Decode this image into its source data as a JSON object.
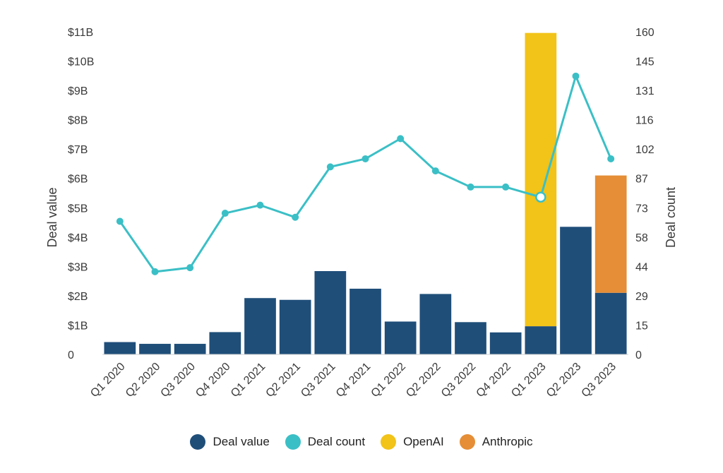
{
  "chart_data": {
    "type": "bar",
    "categories": [
      "Q1 2020",
      "Q2 2020",
      "Q3 2020",
      "Q4 2020",
      "Q1 2021",
      "Q2 2021",
      "Q3 2021",
      "Q4 2021",
      "Q1 2022",
      "Q2 2022",
      "Q3 2022",
      "Q4 2022",
      "Q1 2023",
      "Q2 2023",
      "Q3 2023"
    ],
    "series": [
      {
        "name": "Deal value",
        "kind": "bar-stack",
        "axis": "left",
        "color": "#1f4e79",
        "values": [
          0.42,
          0.36,
          0.36,
          0.76,
          1.92,
          1.86,
          2.84,
          2.24,
          1.12,
          2.06,
          1.1,
          0.75,
          0.96,
          4.35,
          2.1
        ]
      },
      {
        "name": "OpenAI",
        "kind": "bar-stack",
        "axis": "left",
        "color": "#f2c318",
        "values": [
          0,
          0,
          0,
          0,
          0,
          0,
          0,
          0,
          0,
          0,
          0,
          0,
          10,
          0,
          0
        ]
      },
      {
        "name": "Anthropic",
        "kind": "bar-stack",
        "axis": "left",
        "color": "#e58e37",
        "values": [
          0,
          0,
          0,
          0,
          0,
          0,
          0,
          0,
          0,
          0,
          0,
          0,
          0,
          0,
          4
        ]
      },
      {
        "name": "Deal count",
        "kind": "line",
        "axis": "right",
        "color": "#3bbfc6",
        "values": [
          66,
          41,
          43,
          70,
          74,
          68,
          93,
          97,
          107,
          91,
          83,
          83,
          78,
          138,
          97
        ]
      }
    ],
    "ylabel": "Deal value",
    "y2label": "Deal count",
    "ylim": [
      0,
      11
    ],
    "y2lim": [
      0,
      160
    ],
    "yticks": [
      "0",
      "$1B",
      "$2B",
      "$3B",
      "$4B",
      "$5B",
      "$6B",
      "$7B",
      "$8B",
      "$9B",
      "$10B",
      "$11B"
    ],
    "y2ticks": [
      "0",
      "15",
      "29",
      "44",
      "58",
      "73",
      "87",
      "102",
      "116",
      "131",
      "145",
      "160"
    ],
    "grid": false,
    "legend_position": "bottom-center",
    "highlighted_point": 12
  },
  "legend": {
    "items": [
      {
        "label": "Deal value",
        "color": "#1f4e79"
      },
      {
        "label": "Deal count",
        "color": "#3bbfc6"
      },
      {
        "label": "OpenAI",
        "color": "#f2c318"
      },
      {
        "label": "Anthropic",
        "color": "#e58e37"
      }
    ]
  }
}
